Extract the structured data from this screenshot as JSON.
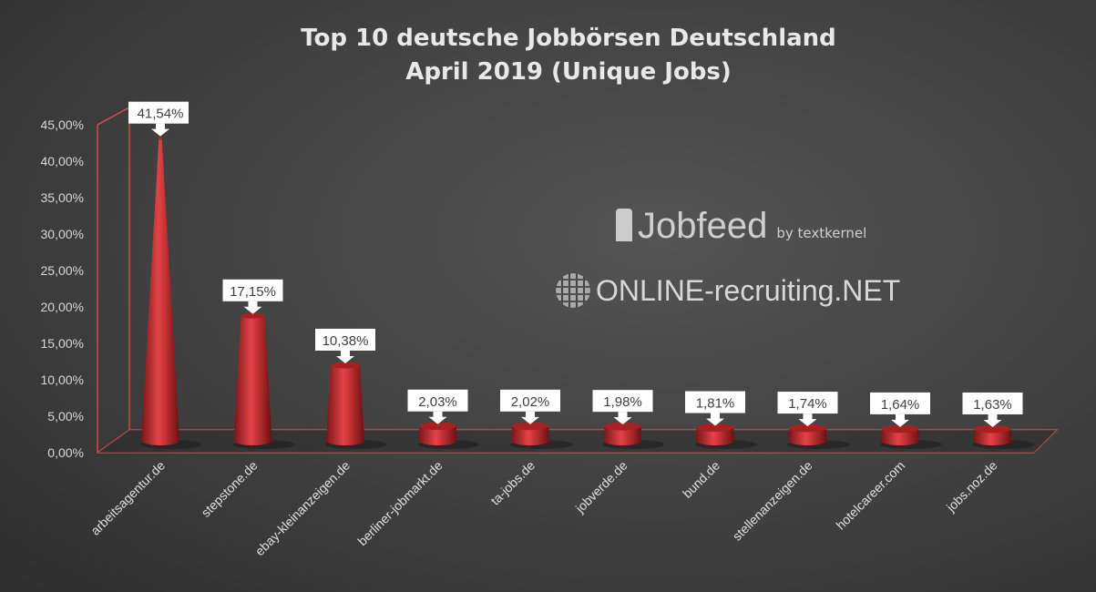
{
  "chart_data": {
    "type": "bar",
    "title": [
      "Top 10 deutsche Jobbörsen Deutschland",
      "April 2019 (Unique Jobs)"
    ],
    "categories": [
      "arbeitsagentur.de",
      "stepstone.de",
      "ebay-kleinanzeigen.de",
      "berliner-jobmarkt.de",
      "ta-jobs.de",
      "jobverde.de",
      "bund.de",
      "stellenanzeigen.de",
      "hotelcareer.com",
      "jobs.noz.de"
    ],
    "values": [
      41.54,
      17.15,
      10.38,
      2.03,
      2.02,
      1.98,
      1.81,
      1.74,
      1.64,
      1.63
    ],
    "data_labels": [
      "41,54%",
      "17,15%",
      "10,38%",
      "2,03%",
      "2,02%",
      "1,98%",
      "1,81%",
      "1,74%",
      "1,64%",
      "1,63%"
    ],
    "yticks": [
      "0,00%",
      "5,00%",
      "10,00%",
      "15,00%",
      "20,00%",
      "25,00%",
      "30,00%",
      "35,00%",
      "40,00%",
      "45,00%"
    ],
    "ylim": [
      0,
      45
    ],
    "bar_shape": "3d-cone",
    "bar_color": "#c0282a",
    "frame_color": "#d9534f",
    "grid": false,
    "legend": "none"
  },
  "logos": {
    "jobfeed": "Jobfeed",
    "jobfeed_by": "by textkernel",
    "online_recruiting": "ONLINE-recruiting.NET"
  }
}
